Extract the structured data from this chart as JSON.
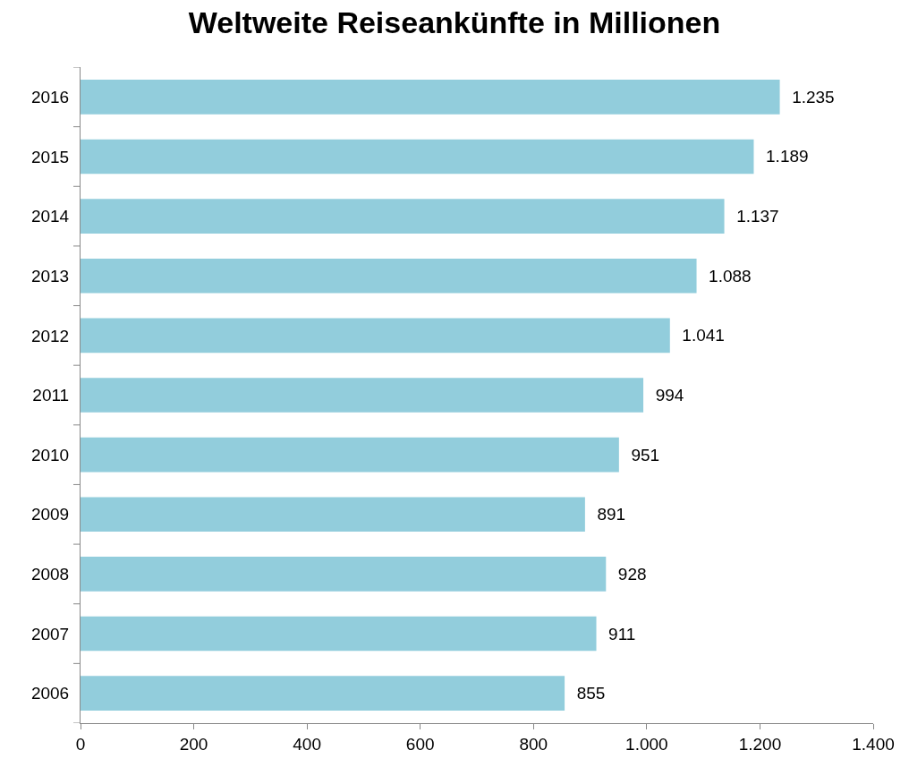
{
  "chart_data": {
    "type": "bar",
    "orientation": "horizontal",
    "title": "Weltweite Reiseankünfte in Millionen",
    "categories": [
      "2016",
      "2015",
      "2014",
      "2013",
      "2012",
      "2011",
      "2010",
      "2009",
      "2008",
      "2007",
      "2006"
    ],
    "values": [
      1235,
      1189,
      1137,
      1088,
      1041,
      994,
      951,
      891,
      928,
      911,
      855
    ],
    "value_labels": [
      "1.235",
      "1.189",
      "1.137",
      "1.088",
      "1.041",
      "994",
      "951",
      "891",
      "928",
      "911",
      "855"
    ],
    "color": "#92cddc",
    "xlim": [
      0,
      1400
    ],
    "xticks": [
      0,
      200,
      400,
      600,
      800,
      {
        "value": 1000,
        "label": "1.000"
      },
      {
        "value": 1200,
        "label": "1.200"
      },
      {
        "value": 1400,
        "label": "1.400"
      }
    ],
    "grid": false
  }
}
